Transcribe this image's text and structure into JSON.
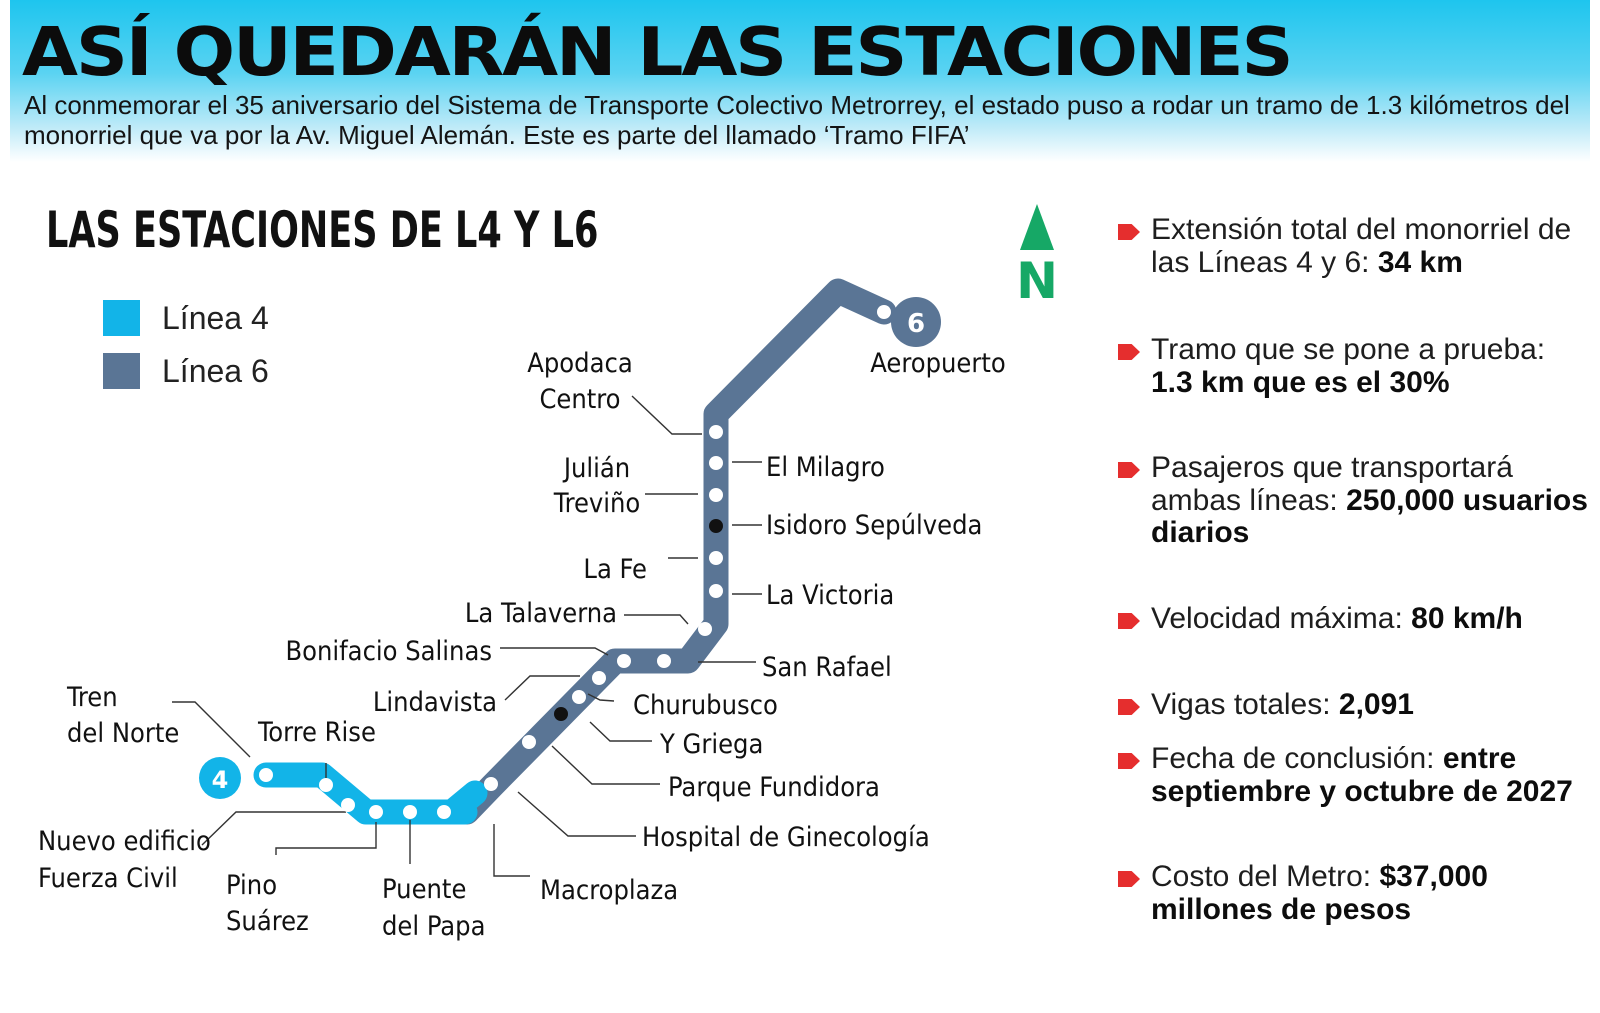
{
  "headline": "ASÍ QUEDARÁN LAS ESTACIONES",
  "intro": "Al conmemorar el 35 aniversario del Sistema de Transporte Colectivo Metrorrey, el estado puso a rodar un tramo de 1.3 kilómetros del monorriel que va por la Av. Miguel Alemán. Este es parte del llamado ‘Tramo FIFA’",
  "map": {
    "title": "LAS ESTACIONES DE L4 Y L6",
    "north_label": "N",
    "legend": [
      {
        "label": "Línea 4",
        "color": "#12b4e8"
      },
      {
        "label": "Línea 6",
        "color": "#5a7595"
      }
    ],
    "line_badges": {
      "l4": "4",
      "l6": "6"
    },
    "stations": {
      "aeropuerto": "Aeropuerto",
      "apodaca_centro": [
        "Apodaca",
        "Centro"
      ],
      "el_milagro": "El Milagro",
      "julian_trevino": [
        "Julián",
        "Treviño"
      ],
      "isidoro_sepulveda": "Isidoro Sepúlveda",
      "la_fe": "La Fe",
      "la_victoria": "La Victoria",
      "la_talaverna": "La Talaverna",
      "bonifacio_salinas": "Bonifacio Salinas",
      "san_rafael": "San Rafael",
      "lindavista": "Lindavista",
      "churubusco": "Churubusco",
      "y_griega": "Y Griega",
      "tren_del_norte": [
        "Tren",
        "del Norte"
      ],
      "torre_rise": "Torre Rise",
      "parque_fundidora": "Parque Fundidora",
      "hospital_ginecologia": "Hospital de Ginecología",
      "nuevo_edificio_fuerza_civil": [
        "Nuevo edificio",
        "Fuerza Civil"
      ],
      "pino_suarez": [
        "Pino",
        "Suárez"
      ],
      "puente_del_papa": [
        "Puente",
        "del Papa"
      ],
      "macroplaza": "Macroplaza"
    },
    "colors": {
      "linea4": "#12b4e8",
      "linea6": "#5a7595",
      "north": "#16a866",
      "bullet": "#e52e2e"
    }
  },
  "facts": [
    {
      "text": "Extensión total del monorriel de las Líneas 4 y 6: ",
      "value": "34 km"
    },
    {
      "text": "Tramo que se pone a prueba: ",
      "value": "1.3 km que es el 30%"
    },
    {
      "text": "Pasajeros que transportará ambas líneas: ",
      "value": "250,000 usuarios diarios"
    },
    {
      "text": "Velocidad máxima: ",
      "value": "80 km/h"
    },
    {
      "text": "Vigas totales: ",
      "value": "2,091"
    },
    {
      "text": "Fecha de conclusión: ",
      "value": "entre septiembre y octubre de 2027"
    },
    {
      "text": "Costo del Metro: ",
      "value": "$37,000 millones de pesos"
    }
  ]
}
